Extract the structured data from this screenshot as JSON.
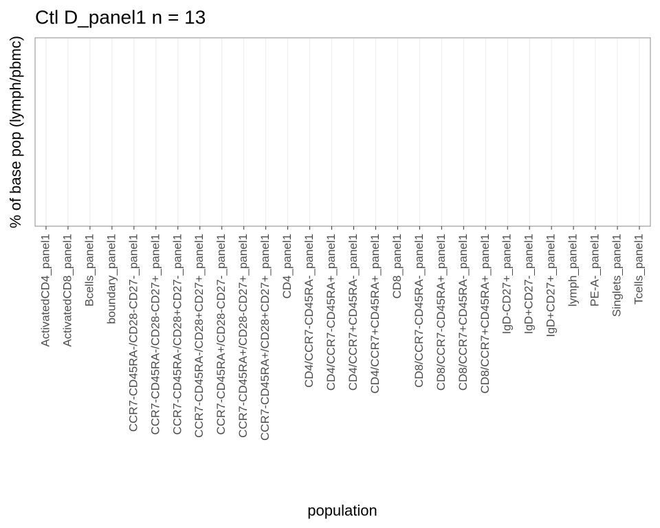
{
  "chart_data": {
    "type": "box",
    "title": "Ctl D_panel1 n = 13",
    "x_label": "population",
    "y_label": "% of base pop (lymph/pbmc)",
    "categories": [
      "ActivatedCD4_panel1",
      "ActivatedCD8_panel1",
      "Bcells_panel1",
      "boundary_panel1",
      "CCR7-CD45RA-/CD28-CD27-_panel1",
      "CCR7-CD45RA-/CD28-CD27+_panel1",
      "CCR7-CD45RA-/CD28+CD27-_panel1",
      "CCR7-CD45RA-/CD28+CD27+_panel1",
      "CCR7-CD45RA+/CD28-CD27-_panel1",
      "CCR7-CD45RA+/CD28-CD27+_panel1",
      "CCR7-CD45RA+/CD28+CD27+_panel1",
      "CD4_panel1",
      "CD4/CCR7-CD45RA-_panel1",
      "CD4/CCR7-CD45RA+_panel1",
      "CD4/CCR7+CD45RA-_panel1",
      "CD4/CCR7+CD45RA+_panel1",
      "CD8_panel1",
      "CD8/CCR7-CD45RA-_panel1",
      "CD8/CCR7-CD45RA+_panel1",
      "CD8/CCR7+CD45RA-_panel1",
      "CD8/CCR7+CD45RA+_panel1",
      "IgD-CD27+_panel1",
      "IgD+CD27-_panel1",
      "IgD+CD27+_panel1",
      "lymph_panel1",
      "PE-A-_panel1",
      "Singlets_panel1",
      "Tcells_panel1"
    ],
    "grid": true
  }
}
